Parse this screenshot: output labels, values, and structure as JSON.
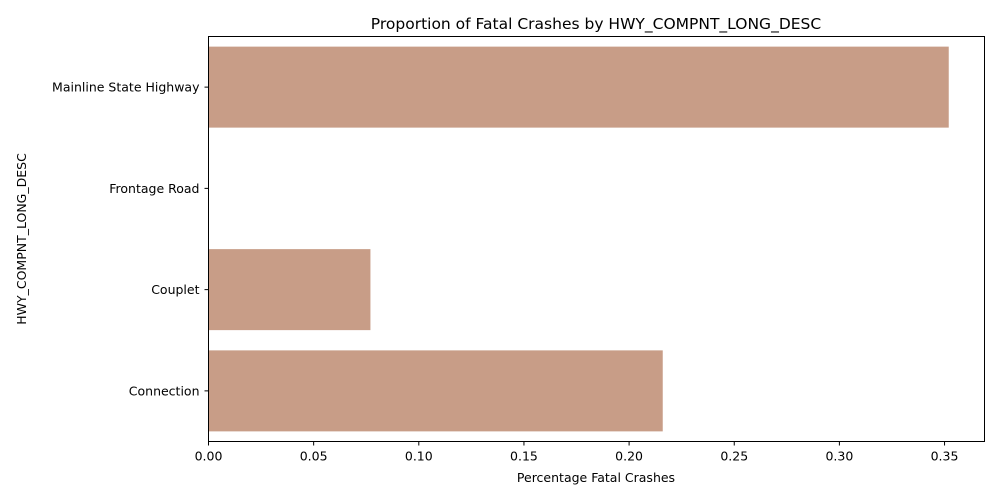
{
  "chart_data": {
    "type": "bar",
    "orientation": "horizontal",
    "title": "Proportion of Fatal Crashes by HWY_COMPNT_LONG_DESC",
    "xlabel": "Percentage Fatal Crashes",
    "ylabel": "HWY_COMPNT_LONG_DESC",
    "categories": [
      "Mainline State Highway",
      "Frontage Road",
      "Couplet",
      "Connection"
    ],
    "values": [
      0.352,
      0.0,
      0.077,
      0.216
    ],
    "xlim": [
      0,
      0.369
    ],
    "xticks": [
      "0.00",
      "0.05",
      "0.10",
      "0.15",
      "0.20",
      "0.25",
      "0.30",
      "0.35"
    ],
    "grid": false,
    "legend": "none",
    "bar_color": "#c89d87"
  }
}
